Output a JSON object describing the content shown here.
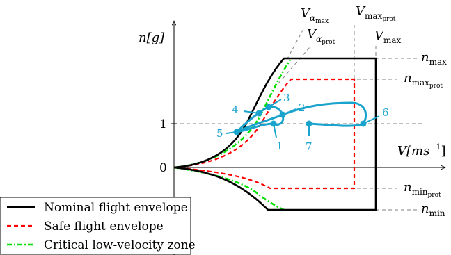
{
  "axes": {
    "y_label": "n[g]",
    "x_label": "V[ms",
    "x_label_exp": "−1",
    "x_label_close": "]",
    "tick_one": "1",
    "tick_zero": "0"
  },
  "velocities": {
    "v_alpha_max": {
      "base": "V",
      "sub": "α",
      "subsub": "max"
    },
    "v_alpha_prot": {
      "base": "V",
      "sub": "α",
      "subsub": "prot"
    },
    "v_max_prot": {
      "base": "V",
      "sub": "max",
      "subsub": "prot"
    },
    "v_max": {
      "base": "V",
      "sub": "max"
    }
  },
  "load_limits": {
    "n_max": {
      "base": "n",
      "sub": "max"
    },
    "n_max_prot": {
      "base": "n",
      "sub": "max",
      "subsub": "prot"
    },
    "n_min_prot": {
      "base": "n",
      "sub": "min",
      "subsub": "prot"
    },
    "n_min": {
      "base": "n",
      "sub": "min"
    }
  },
  "trajectory_points": [
    "1",
    "2",
    "3",
    "4",
    "5",
    "6",
    "7"
  ],
  "legend": [
    {
      "label": "Nominal flight envelope",
      "color": "#000000",
      "style": "solid"
    },
    {
      "label": "Safe flight envelope",
      "color": "#ff0000",
      "style": "dashed"
    },
    {
      "label": "Critical low-velocity zone",
      "color": "#00e000",
      "style": "dashdot"
    }
  ],
  "colors": {
    "trajectory": "#1aa3cc",
    "guide": "#808080"
  }
}
